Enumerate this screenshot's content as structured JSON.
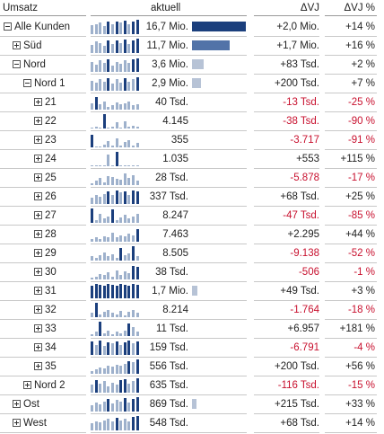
{
  "header": {
    "col1": "Umsatz",
    "col2": "aktuell",
    "col3": "ΔVJ",
    "col4": "ΔVJ %"
  },
  "colors": {
    "spark_dark": "#1b3f7d",
    "spark_light": "#9eb1cc",
    "bar_dark": "#1b3f7d",
    "bar_mid": "#5273a8",
    "bar_light": "#b7c3d6",
    "negative": "#c8102e"
  },
  "rows": [
    {
      "label": "Alle Kunden",
      "indent": 0,
      "expander": "minus",
      "value": "16,7 Mio.",
      "bar": 1.0,
      "delta": "+2,0 Mio.",
      "pct": "+14 %",
      "neg": false,
      "spark": [
        9,
        10,
        11,
        8,
        12,
        10,
        12,
        11,
        13,
        10,
        12,
        14
      ]
    },
    {
      "label": "Süd",
      "indent": 1,
      "expander": "plus",
      "value": "11,7 Mio.",
      "bar": 0.7,
      "delta": "+1,7 Mio.",
      "pct": "+16 %",
      "neg": false,
      "spark": [
        8,
        11,
        10,
        7,
        12,
        9,
        12,
        10,
        13,
        9,
        12,
        14
      ]
    },
    {
      "label": "Nord",
      "indent": 1,
      "expander": "minus",
      "value": "3,6 Mio.",
      "bar": 0.21,
      "delta": "+83 Tsd.",
      "pct": "+2 %",
      "neg": false,
      "spark": [
        10,
        7,
        11,
        9,
        12,
        6,
        10,
        8,
        11,
        9,
        12,
        13
      ]
    },
    {
      "label": "Nord 1",
      "indent": 2,
      "expander": "minus",
      "value": "2,9 Mio.",
      "bar": 0.17,
      "delta": "+200 Tsd.",
      "pct": "+7 %",
      "neg": false,
      "spark": [
        10,
        8,
        11,
        9,
        12,
        7,
        11,
        8,
        12,
        9,
        11,
        13
      ]
    },
    {
      "label": "21",
      "indent": 3,
      "expander": "plus",
      "value": "40 Tsd.",
      "bar": 0,
      "delta": "-13 Tsd.",
      "pct": "-25 %",
      "neg": true,
      "spark": [
        6,
        12,
        5,
        8,
        3,
        4,
        7,
        5,
        6,
        8,
        4,
        5
      ]
    },
    {
      "label": "22",
      "indent": 3,
      "expander": "plus",
      "value": "4.145",
      "bar": 0,
      "delta": "-38 Tsd.",
      "pct": "-90 %",
      "neg": true,
      "spark": [
        1,
        2,
        1,
        14,
        1,
        2,
        6,
        1,
        7,
        2,
        3,
        2
      ]
    },
    {
      "label": "23",
      "indent": 3,
      "expander": "plus",
      "value": "355",
      "bar": 0,
      "delta": "-3.717",
      "pct": "-91 %",
      "neg": true,
      "spark": [
        12,
        1,
        1,
        3,
        6,
        2,
        9,
        2,
        5,
        7,
        2,
        4
      ]
    },
    {
      "label": "24",
      "indent": 3,
      "expander": "plus",
      "value": "1.035",
      "bar": 0,
      "delta": "+553",
      "pct": "+115 %",
      "neg": false,
      "spark": [
        0,
        0,
        0,
        0,
        11,
        0,
        14,
        0,
        0,
        0,
        0,
        0
      ]
    },
    {
      "label": "25",
      "indent": 3,
      "expander": "plus",
      "value": "28 Tsd.",
      "bar": 0,
      "delta": "-5.878",
      "pct": "-17 %",
      "neg": true,
      "spark": [
        2,
        4,
        7,
        3,
        9,
        8,
        6,
        5,
        11,
        7,
        10,
        4
      ]
    },
    {
      "label": "26",
      "indent": 3,
      "expander": "plus",
      "value": "337 Tsd.",
      "bar": 0,
      "delta": "+68 Tsd.",
      "pct": "+25 %",
      "neg": false,
      "spark": [
        6,
        9,
        7,
        10,
        12,
        9,
        13,
        11,
        12,
        9,
        13,
        12
      ]
    },
    {
      "label": "27",
      "indent": 3,
      "expander": "plus",
      "value": "8.247",
      "bar": 0,
      "delta": "-47 Tsd.",
      "pct": "-85 %",
      "neg": true,
      "spark": [
        14,
        3,
        9,
        4,
        6,
        13,
        3,
        5,
        8,
        4,
        6,
        9
      ]
    },
    {
      "label": "28",
      "indent": 3,
      "expander": "plus",
      "value": "7.463",
      "bar": 0,
      "delta": "+2.295",
      "pct": "+44 %",
      "neg": false,
      "spark": [
        3,
        4,
        3,
        5,
        4,
        9,
        4,
        6,
        5,
        8,
        6,
        12
      ]
    },
    {
      "label": "29",
      "indent": 3,
      "expander": "plus",
      "value": "8.505",
      "bar": 0,
      "delta": "-9.138",
      "pct": "-52 %",
      "neg": true,
      "spark": [
        4,
        3,
        5,
        8,
        4,
        6,
        3,
        12,
        5,
        7,
        14,
        4
      ]
    },
    {
      "label": "30",
      "indent": 3,
      "expander": "plus",
      "value": "38 Tsd.",
      "bar": 0,
      "delta": "-506",
      "pct": "-1 %",
      "neg": true,
      "spark": [
        2,
        3,
        5,
        4,
        7,
        3,
        9,
        4,
        8,
        6,
        13,
        12
      ]
    },
    {
      "label": "31",
      "indent": 3,
      "expander": "plus",
      "value": "1,7 Mio.",
      "bar": 0.1,
      "delta": "+49 Tsd.",
      "pct": "+3 %",
      "neg": false,
      "spark": [
        12,
        14,
        13,
        12,
        14,
        13,
        12,
        14,
        13,
        12,
        14,
        13
      ]
    },
    {
      "label": "32",
      "indent": 3,
      "expander": "plus",
      "value": "8.214",
      "bar": 0,
      "delta": "-1.764",
      "pct": "-18 %",
      "neg": true,
      "spark": [
        4,
        14,
        3,
        5,
        7,
        4,
        3,
        6,
        2,
        5,
        7,
        4
      ]
    },
    {
      "label": "33",
      "indent": 3,
      "expander": "plus",
      "value": "11 Tsd.",
      "bar": 0,
      "delta": "+6.957",
      "pct": "+181 %",
      "neg": false,
      "spark": [
        2,
        4,
        14,
        3,
        5,
        2,
        4,
        3,
        5,
        12,
        9,
        4
      ]
    },
    {
      "label": "34",
      "indent": 3,
      "expander": "plus",
      "value": "159 Tsd.",
      "bar": 0,
      "delta": "-6.791",
      "pct": "-4 %",
      "neg": true,
      "spark": [
        13,
        10,
        14,
        9,
        12,
        11,
        13,
        10,
        12,
        14,
        11,
        13
      ]
    },
    {
      "label": "35",
      "indent": 3,
      "expander": "plus",
      "value": "556 Tsd.",
      "bar": 0,
      "delta": "+200 Tsd.",
      "pct": "+56 %",
      "neg": false,
      "spark": [
        3,
        4,
        6,
        5,
        8,
        7,
        9,
        8,
        10,
        12,
        11,
        14
      ]
    },
    {
      "label": "Nord 2",
      "indent": 2,
      "expander": "plus",
      "value": "635 Tsd.",
      "bar": 0,
      "delta": "-116 Tsd.",
      "pct": "-15 %",
      "neg": true,
      "spark": [
        8,
        12,
        9,
        11,
        6,
        10,
        8,
        12,
        13,
        9,
        11,
        14
      ]
    },
    {
      "label": "Ost",
      "indent": 1,
      "expander": "plus",
      "value": "869 Tsd.",
      "bar": 0.05,
      "delta": "+215 Tsd.",
      "pct": "+33 %",
      "neg": false,
      "spark": [
        6,
        9,
        7,
        10,
        12,
        8,
        11,
        10,
        13,
        9,
        12,
        14
      ]
    },
    {
      "label": "West",
      "indent": 1,
      "expander": "plus",
      "value": "548 Tsd.",
      "bar": 0,
      "delta": "+68 Tsd.",
      "pct": "+14 %",
      "neg": false,
      "spark": [
        7,
        9,
        8,
        10,
        11,
        9,
        12,
        10,
        11,
        9,
        13,
        14
      ]
    }
  ]
}
